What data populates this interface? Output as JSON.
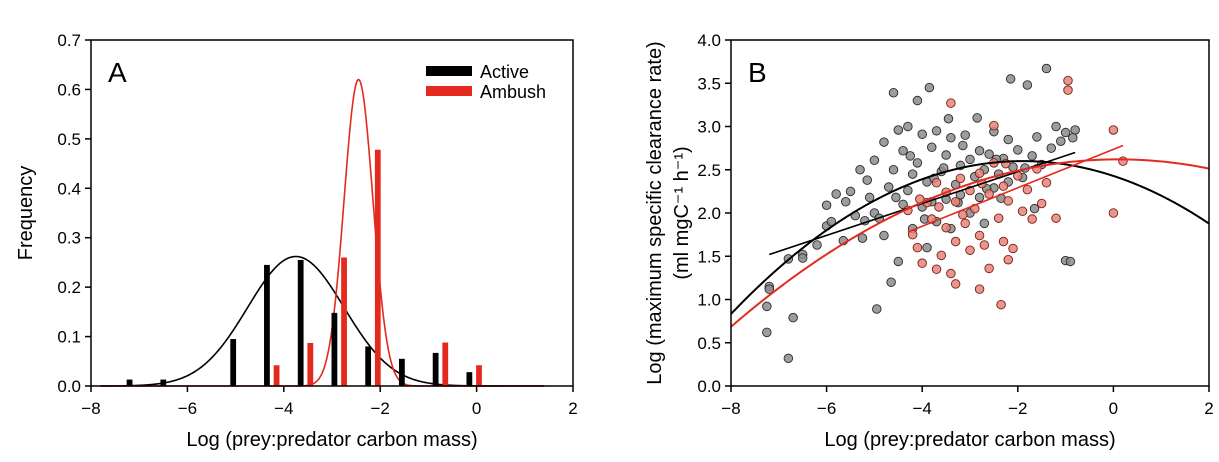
{
  "colors": {
    "active": "#000000",
    "ambush": "#e42a1f",
    "active_point": "#8c8c8c",
    "ambush_point": "#e5847a"
  },
  "chart_data": [
    {
      "type": "bar",
      "panel_label": "A",
      "xlabel": "Log (prey:predator carbon mass)",
      "ylabel": "Frequency",
      "xlim": [
        -8,
        2
      ],
      "ylim": [
        0,
        0.7
      ],
      "xticks": [
        "−8",
        "−6",
        "−4",
        "−2",
        "0",
        "2"
      ],
      "yticks": [
        "0.0",
        "0.1",
        "0.2",
        "0.3",
        "0.4",
        "0.5",
        "0.6",
        "0.7"
      ],
      "legend_position": "top-right",
      "series": [
        {
          "name": "Active",
          "color": "#000000",
          "x": [
            -7.2,
            -6.5,
            -5.05,
            -4.35,
            -3.65,
            -2.95,
            -2.25,
            -1.55,
            -0.85,
            -0.15
          ],
          "values": [
            0.013,
            0.013,
            0.095,
            0.245,
            0.255,
            0.148,
            0.08,
            0.055,
            0.067,
            0.028
          ],
          "fit": {
            "kind": "gaussian",
            "amp": 0.262,
            "mean": -3.75,
            "sd": 1.0
          }
        },
        {
          "name": "Ambush",
          "color": "#e42a1f",
          "x": [
            -4.15,
            -3.45,
            -2.75,
            -2.05,
            -0.65,
            0.05
          ],
          "values": [
            0.042,
            0.087,
            0.26,
            0.478,
            0.088,
            0.042
          ],
          "fit": {
            "kind": "gaussian",
            "amp": 0.62,
            "mean": -2.45,
            "sd": 0.3
          }
        }
      ]
    },
    {
      "type": "scatter",
      "panel_label": "B",
      "xlabel": "Log (prey:predator carbon mass)",
      "ylabel_line1": "Log (maximum specific clearance rate)",
      "ylabel_line2": "(ml mgC⁻¹ h⁻¹)",
      "xlim": [
        -8,
        2
      ],
      "ylim": [
        0,
        4
      ],
      "xticks": [
        "−8",
        "−6",
        "−4",
        "−2",
        "0",
        "2"
      ],
      "yticks": [
        "0.0",
        "0.5",
        "1.0",
        "1.5",
        "2.0",
        "2.5",
        "3.0",
        "3.5",
        "4.0"
      ],
      "series": [
        {
          "name": "Active",
          "color": "#8c8c8c",
          "points": [
            [
              -7.2,
              1.15
            ],
            [
              -7.2,
              1.12
            ],
            [
              -7.25,
              0.92
            ],
            [
              -7.25,
              0.62
            ],
            [
              -6.8,
              0.32
            ],
            [
              -6.7,
              0.79
            ],
            [
              -6.8,
              1.47
            ],
            [
              -6.5,
              1.52
            ],
            [
              -6.5,
              1.48
            ],
            [
              -6.2,
              1.63
            ],
            [
              -6.0,
              1.85
            ],
            [
              -6.0,
              2.09
            ],
            [
              -5.9,
              1.9
            ],
            [
              -5.8,
              2.22
            ],
            [
              -5.6,
              2.13
            ],
            [
              -5.5,
              2.25
            ],
            [
              -5.4,
              1.97
            ],
            [
              -5.3,
              2.5
            ],
            [
              -5.2,
              1.91
            ],
            [
              -5.1,
              2.18
            ],
            [
              -5.0,
              2.61
            ],
            [
              -5.0,
              2.0
            ],
            [
              -4.9,
              1.94
            ],
            [
              -4.8,
              1.74
            ],
            [
              -4.8,
              2.82
            ],
            [
              -4.7,
              2.3
            ],
            [
              -4.6,
              2.5
            ],
            [
              -4.6,
              3.39
            ],
            [
              -4.5,
              1.44
            ],
            [
              -4.5,
              2.96
            ],
            [
              -4.4,
              2.1
            ],
            [
              -4.4,
              2.72
            ],
            [
              -4.3,
              2.26
            ],
            [
              -4.3,
              3.0
            ],
            [
              -4.2,
              2.45
            ],
            [
              -4.2,
              1.82
            ],
            [
              -4.1,
              2.58
            ],
            [
              -4.1,
              3.3
            ],
            [
              -4.0,
              2.07
            ],
            [
              -4.0,
              2.91
            ],
            [
              -3.9,
              2.36
            ],
            [
              -3.9,
              1.6
            ],
            [
              -3.8,
              2.76
            ],
            [
              -3.8,
              2.13
            ],
            [
              -3.7,
              2.95
            ],
            [
              -3.7,
              1.9
            ],
            [
              -3.6,
              2.48
            ],
            [
              -3.5,
              2.16
            ],
            [
              -3.5,
              2.67
            ],
            [
              -3.4,
              1.82
            ],
            [
              -3.4,
              2.87
            ],
            [
              -3.3,
              2.33
            ],
            [
              -3.2,
              2.55
            ],
            [
              -3.2,
              2.21
            ],
            [
              -3.1,
              2.9
            ],
            [
              -3.0,
              2.0
            ],
            [
              -3.0,
              2.62
            ],
            [
              -2.9,
              2.42
            ],
            [
              -2.8,
              2.72
            ],
            [
              -2.8,
              2.18
            ],
            [
              -2.7,
              2.5
            ],
            [
              -2.7,
              1.88
            ],
            [
              -2.6,
              2.68
            ],
            [
              -2.5,
              2.29
            ],
            [
              -2.5,
              2.94
            ],
            [
              -2.4,
              2.45
            ],
            [
              -2.3,
              2.63
            ],
            [
              -2.2,
              2.36
            ],
            [
              -2.2,
              2.85
            ],
            [
              -2.1,
              2.53
            ],
            [
              -2.0,
              2.73
            ],
            [
              -1.9,
              2.41
            ],
            [
              -1.8,
              3.48
            ],
            [
              -1.7,
              2.66
            ],
            [
              -1.6,
              2.88
            ],
            [
              -1.5,
              2.56
            ],
            [
              -1.4,
              3.67
            ],
            [
              -1.3,
              2.75
            ],
            [
              -1.2,
              3.0
            ],
            [
              -1.1,
              2.83
            ],
            [
              -1.0,
              1.45
            ],
            [
              -1.0,
              2.93
            ],
            [
              -0.9,
              1.44
            ],
            [
              -0.8,
              2.96
            ],
            [
              -0.85,
              2.87
            ],
            [
              -4.95,
              0.89
            ],
            [
              -5.25,
              1.71
            ],
            [
              -4.65,
              1.2
            ],
            [
              -3.85,
              3.45
            ],
            [
              -3.45,
              3.09
            ],
            [
              -2.85,
              3.1
            ],
            [
              -2.15,
              3.55
            ],
            [
              -4.55,
              2.18
            ],
            [
              -3.75,
              2.4
            ],
            [
              -3.15,
              2.78
            ],
            [
              -2.45,
              2.62
            ],
            [
              -5.15,
              2.38
            ],
            [
              -4.25,
              2.66
            ],
            [
              -3.55,
              2.52
            ],
            [
              -2.65,
              2.28
            ],
            [
              -1.85,
              2.52
            ],
            [
              -5.65,
              1.68
            ],
            [
              -3.95,
              1.93
            ],
            [
              -3.25,
              2.12
            ],
            [
              -2.35,
              2.17
            ],
            [
              -1.65,
              2.05
            ]
          ]
        },
        {
          "name": "Ambush",
          "color": "#e5847a",
          "points": [
            [
              -4.3,
              2.03
            ],
            [
              -4.2,
              1.75
            ],
            [
              -4.1,
              1.6
            ],
            [
              -4.0,
              1.42
            ],
            [
              -3.9,
              2.12
            ],
            [
              -3.8,
              1.93
            ],
            [
              -3.7,
              2.35
            ],
            [
              -3.6,
              1.51
            ],
            [
              -3.5,
              2.24
            ],
            [
              -3.5,
              1.83
            ],
            [
              -3.4,
              1.3
            ],
            [
              -3.3,
              2.13
            ],
            [
              -3.3,
              1.67
            ],
            [
              -3.2,
              2.4
            ],
            [
              -3.1,
              1.88
            ],
            [
              -3.0,
              1.57
            ],
            [
              -3.0,
              2.26
            ],
            [
              -2.9,
              2.05
            ],
            [
              -2.8,
              1.74
            ],
            [
              -2.8,
              2.46
            ],
            [
              -2.7,
              1.63
            ],
            [
              -2.6,
              2.22
            ],
            [
              -2.6,
              1.36
            ],
            [
              -2.5,
              2.58
            ],
            [
              -2.4,
              1.94
            ],
            [
              -2.3,
              2.31
            ],
            [
              -2.3,
              1.67
            ],
            [
              -2.2,
              2.14
            ],
            [
              -2.1,
              1.59
            ],
            [
              -2.0,
              2.43
            ],
            [
              -1.9,
              2.02
            ],
            [
              -1.8,
              2.27
            ],
            [
              -1.7,
              1.93
            ],
            [
              -1.6,
              2.51
            ],
            [
              -1.5,
              2.11
            ],
            [
              -1.4,
              2.35
            ],
            [
              -1.2,
              1.94
            ],
            [
              -0.95,
              3.53
            ],
            [
              -0.95,
              3.42
            ],
            [
              0.0,
              2.96
            ],
            [
              0.0,
              2.0
            ],
            [
              0.2,
              2.6
            ],
            [
              -2.35,
              0.94
            ],
            [
              -2.8,
              1.12
            ],
            [
              -3.3,
              1.18
            ],
            [
              -3.7,
              1.35
            ],
            [
              -2.5,
              3.01
            ],
            [
              -3.4,
              3.27
            ],
            [
              -2.2,
              1.46
            ],
            [
              -4.05,
              2.16
            ],
            [
              -3.65,
              2.07
            ],
            [
              -3.15,
              1.98
            ],
            [
              -2.75,
              2.34
            ],
            [
              -2.25,
              2.57
            ]
          ]
        }
      ],
      "fits": [
        {
          "series": "Active",
          "kind": "linear",
          "x": [
            -7.2,
            -0.8
          ],
          "y": [
            1.52,
            2.7
          ]
        },
        {
          "series": "Active",
          "kind": "quadratic",
          "x_range": [
            -8,
            2
          ],
          "vertex_x": -1.9,
          "vertex_y": 2.6,
          "a": -0.0475
        },
        {
          "series": "Ambush",
          "kind": "linear",
          "x": [
            -4.3,
            0.2
          ],
          "y": [
            1.78,
            2.78
          ]
        },
        {
          "series": "Ambush",
          "kind": "quadratic",
          "x_range": [
            -8,
            2
          ],
          "vertex_x": 0.1,
          "vertex_y": 2.62,
          "a": -0.0295
        }
      ]
    }
  ]
}
